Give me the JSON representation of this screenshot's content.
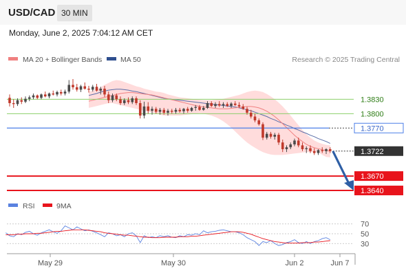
{
  "header": {
    "pair": "USD/CAD",
    "timeframe": "30 MIN",
    "datetime": "Monday, June 2, 2025 7:04:12 AM CET"
  },
  "copyright": "Research © 2025 Trading Central",
  "colors": {
    "up": "#4a4a4a",
    "down": "#c0392b",
    "bollinger_fill": "#ffd6d6",
    "ma20": "#f08080",
    "ma50": "#5a6ea8",
    "resistance_green": "#8ccf6a",
    "pivot_blue": "#4a7ee8",
    "support_red": "#e8141c",
    "arrow": "#2f5fa5",
    "rsi": "#5a82e0",
    "rsi_ma": "#e8141c"
  },
  "chart_data": [
    {
      "type": "candlestick",
      "legend": [
        {
          "label": "MA 20 + Bollinger Bands",
          "color": "#f08080"
        },
        {
          "label": "MA 50",
          "color": "#2f4f8f"
        }
      ],
      "x_tick_labels": [
        "May 29",
        "May 30",
        "Jun 2",
        "Jun 7"
      ],
      "ylim": [
        1.362,
        1.3895
      ],
      "ohlc": [
        [
          1.3833,
          1.384,
          1.3815,
          1.3822
        ],
        [
          1.3822,
          1.383,
          1.3812,
          1.382
        ],
        [
          1.382,
          1.3832,
          1.3816,
          1.3828
        ],
        [
          1.3828,
          1.3834,
          1.382,
          1.3825
        ],
        [
          1.3825,
          1.3836,
          1.3822,
          1.3831
        ],
        [
          1.3831,
          1.3838,
          1.3826,
          1.3834
        ],
        [
          1.3834,
          1.3842,
          1.383,
          1.3838
        ],
        [
          1.3838,
          1.384,
          1.383,
          1.3833
        ],
        [
          1.3833,
          1.3842,
          1.383,
          1.384
        ],
        [
          1.384,
          1.3846,
          1.3834,
          1.3836
        ],
        [
          1.3836,
          1.3844,
          1.3832,
          1.3842
        ],
        [
          1.3842,
          1.3848,
          1.3838,
          1.384
        ],
        [
          1.384,
          1.3848,
          1.3836,
          1.3845
        ],
        [
          1.3845,
          1.385,
          1.3838,
          1.3842
        ],
        [
          1.3842,
          1.385,
          1.3838,
          1.3846
        ],
        [
          1.3846,
          1.387,
          1.3842,
          1.386
        ],
        [
          1.386,
          1.3872,
          1.385,
          1.3855
        ],
        [
          1.3855,
          1.3862,
          1.3846,
          1.385
        ],
        [
          1.385,
          1.386,
          1.3845,
          1.3857
        ],
        [
          1.3857,
          1.3865,
          1.385,
          1.3852
        ],
        [
          1.3852,
          1.3858,
          1.3844,
          1.385
        ],
        [
          1.385,
          1.386,
          1.3846,
          1.3856
        ],
        [
          1.3856,
          1.3862,
          1.3846,
          1.3848
        ],
        [
          1.3848,
          1.3856,
          1.384,
          1.3852
        ],
        [
          1.3852,
          1.3858,
          1.3835,
          1.384
        ],
        [
          1.384,
          1.3846,
          1.3822,
          1.3828
        ],
        [
          1.3828,
          1.3842,
          1.3824,
          1.3838
        ],
        [
          1.3838,
          1.3842,
          1.3826,
          1.383
        ],
        [
          1.383,
          1.3836,
          1.3818,
          1.3822
        ],
        [
          1.3822,
          1.3832,
          1.3818,
          1.3828
        ],
        [
          1.3828,
          1.3834,
          1.382,
          1.3824
        ],
        [
          1.3824,
          1.3836,
          1.382,
          1.3832
        ],
        [
          1.3832,
          1.3836,
          1.3818,
          1.3822
        ],
        [
          1.3822,
          1.3828,
          1.379,
          1.3796
        ],
        [
          1.3796,
          1.3825,
          1.379,
          1.3815
        ],
        [
          1.3815,
          1.3824,
          1.38,
          1.3806
        ],
        [
          1.3806,
          1.3815,
          1.3798,
          1.381
        ],
        [
          1.381,
          1.3814,
          1.38,
          1.3804
        ],
        [
          1.3804,
          1.3812,
          1.3798,
          1.3808
        ],
        [
          1.3808,
          1.3812,
          1.3798,
          1.3802
        ],
        [
          1.3802,
          1.381,
          1.3796,
          1.3806
        ],
        [
          1.3806,
          1.381,
          1.38,
          1.3804
        ],
        [
          1.3804,
          1.3812,
          1.38,
          1.3808
        ],
        [
          1.3808,
          1.3812,
          1.3802,
          1.3805
        ],
        [
          1.3805,
          1.3812,
          1.38,
          1.381
        ],
        [
          1.381,
          1.3814,
          1.3802,
          1.3806
        ],
        [
          1.3806,
          1.3814,
          1.3804,
          1.3812
        ],
        [
          1.3812,
          1.3818,
          1.3806,
          1.3814
        ],
        [
          1.3814,
          1.3818,
          1.3806,
          1.3808
        ],
        [
          1.3808,
          1.3816,
          1.3806,
          1.3812
        ],
        [
          1.3812,
          1.3826,
          1.381,
          1.3822
        ],
        [
          1.3822,
          1.3826,
          1.3814,
          1.3816
        ],
        [
          1.3816,
          1.3824,
          1.3812,
          1.382
        ],
        [
          1.382,
          1.3826,
          1.3814,
          1.3817
        ],
        [
          1.3817,
          1.3824,
          1.3812,
          1.382
        ],
        [
          1.382,
          1.3824,
          1.3814,
          1.3816
        ],
        [
          1.3816,
          1.3824,
          1.3812,
          1.3821
        ],
        [
          1.3821,
          1.3826,
          1.3816,
          1.3818
        ],
        [
          1.3818,
          1.3824,
          1.3812,
          1.3815
        ],
        [
          1.3815,
          1.382,
          1.3808,
          1.381
        ],
        [
          1.381,
          1.3814,
          1.3798,
          1.3802
        ],
        [
          1.3802,
          1.3808,
          1.379,
          1.3794
        ],
        [
          1.3794,
          1.38,
          1.3782,
          1.3786
        ],
        [
          1.3786,
          1.379,
          1.3775,
          1.3778
        ],
        [
          1.3778,
          1.3782,
          1.3745,
          1.375
        ],
        [
          1.375,
          1.3762,
          1.3746,
          1.3758
        ],
        [
          1.3758,
          1.3762,
          1.3748,
          1.3752
        ],
        [
          1.3752,
          1.376,
          1.3746,
          1.3756
        ],
        [
          1.3756,
          1.376,
          1.3735,
          1.374
        ],
        [
          1.374,
          1.3746,
          1.372,
          1.3726
        ],
        [
          1.3726,
          1.3734,
          1.372,
          1.373
        ],
        [
          1.373,
          1.374,
          1.3726,
          1.3736
        ],
        [
          1.3736,
          1.3748,
          1.3732,
          1.3744
        ],
        [
          1.3744,
          1.375,
          1.373,
          1.3734
        ],
        [
          1.3734,
          1.374,
          1.3722,
          1.3726
        ],
        [
          1.3726,
          1.3732,
          1.3718,
          1.3728
        ],
        [
          1.3728,
          1.3734,
          1.3718,
          1.3722
        ],
        [
          1.3722,
          1.3728,
          1.3714,
          1.3718
        ],
        [
          1.3718,
          1.3726,
          1.3714,
          1.3724
        ],
        [
          1.3724,
          1.373,
          1.3718,
          1.3722
        ],
        [
          1.3722,
          1.3728,
          1.3716,
          1.3726
        ],
        [
          1.3726,
          1.373,
          1.3718,
          1.3722
        ]
      ],
      "ma20": [
        1.3826,
        1.3828,
        1.383,
        1.3832,
        1.3834,
        1.3836,
        1.3838,
        1.384,
        1.3842,
        1.3843,
        1.3844,
        1.3844,
        1.3843,
        1.3842,
        1.3841,
        1.384,
        1.3839,
        1.3837,
        1.3835,
        1.3833,
        1.3831,
        1.3829,
        1.3827,
        1.3825,
        1.3823,
        1.3821,
        1.3819,
        1.3817,
        1.3815,
        1.3814,
        1.3813,
        1.3812,
        1.3811,
        1.381,
        1.381,
        1.381,
        1.3811,
        1.3812,
        1.3813,
        1.3814,
        1.3815,
        1.3815,
        1.3814,
        1.3812,
        1.3809,
        1.3805,
        1.38,
        1.3794,
        1.3787,
        1.3779,
        1.3771,
        1.3763,
        1.3755,
        1.3748,
        1.3742,
        1.3736,
        1.3732,
        1.3729,
        1.3727,
        1.3725,
        1.3723,
        1.3722
      ],
      "bb_upper": [
        1.3846,
        1.3848,
        1.385,
        1.3855,
        1.386,
        1.3864,
        1.3868,
        1.387,
        1.3869,
        1.3866,
        1.3863,
        1.386,
        1.3857,
        1.3855,
        1.3852,
        1.385,
        1.3848,
        1.3846,
        1.3845,
        1.3843,
        1.384,
        1.3838,
        1.3836,
        1.3834,
        1.3833,
        1.3832,
        1.3831,
        1.383,
        1.3829,
        1.3828,
        1.3828,
        1.3828,
        1.3829,
        1.383,
        1.3831,
        1.3833,
        1.3835,
        1.3837,
        1.3839,
        1.3842,
        1.3845,
        1.3847,
        1.3848,
        1.3847,
        1.3845,
        1.3841,
        1.3836,
        1.383,
        1.3823,
        1.3815,
        1.3806,
        1.3796,
        1.3786,
        1.3776,
        1.3766,
        1.3757,
        1.375,
        1.3744,
        1.374,
        1.3737,
        1.3735,
        1.3734
      ],
      "bb_lower": [
        1.3812,
        1.3814,
        1.3816,
        1.3818,
        1.382,
        1.3822,
        1.3822,
        1.382,
        1.3818,
        1.3816,
        1.3814,
        1.3812,
        1.381,
        1.3808,
        1.3806,
        1.3804,
        1.3802,
        1.38,
        1.3798,
        1.3796,
        1.3796,
        1.3796,
        1.3796,
        1.3796,
        1.3797,
        1.3798,
        1.3799,
        1.38,
        1.3801,
        1.38,
        1.3798,
        1.3796,
        1.3793,
        1.3789,
        1.3784,
        1.3778,
        1.3771,
        1.3763,
        1.3755,
        1.3747,
        1.374,
        1.3734,
        1.3729,
        1.3724,
        1.372,
        1.3717,
        1.3715,
        1.3714,
        1.3714,
        1.3714,
        1.3715,
        1.3716,
        1.3717,
        1.3718,
        1.3719,
        1.372,
        1.372,
        1.372,
        1.372,
        1.3714,
        1.371,
        1.3709
      ],
      "ma50": [
        1.3838,
        1.384,
        1.3842,
        1.3845,
        1.3847,
        1.3849,
        1.385,
        1.3851,
        1.3851,
        1.385,
        1.3849,
        1.3847,
        1.3846,
        1.3844,
        1.3842,
        1.384,
        1.3838,
        1.3836,
        1.3834,
        1.3832,
        1.3831,
        1.383,
        1.3829,
        1.3828,
        1.3827,
        1.3826,
        1.3825,
        1.3824,
        1.3823,
        1.3822,
        1.3821,
        1.382,
        1.3819,
        1.3818,
        1.3817,
        1.3816,
        1.3815,
        1.3814,
        1.3812,
        1.381,
        1.3808,
        1.3806,
        1.3803,
        1.38,
        1.3797,
        1.3794,
        1.379,
        1.3787,
        1.3783,
        1.378,
        1.3776,
        1.3773,
        1.3769,
        1.3766,
        1.3762,
        1.3759,
        1.3755,
        1.3752,
        1.3748,
        1.3745,
        1.3742,
        1.3738
      ],
      "levels": [
        {
          "value": 1.383,
          "label": "1.3830",
          "kind": "resistance"
        },
        {
          "value": 1.38,
          "label": "1.3800",
          "kind": "resistance"
        },
        {
          "value": 1.377,
          "label": "1.3770",
          "kind": "pivot"
        },
        {
          "value": 1.3722,
          "label": "1.3722",
          "kind": "last"
        },
        {
          "value": 1.367,
          "label": "1.3670",
          "kind": "support"
        },
        {
          "value": 1.364,
          "label": "1.3640",
          "kind": "support"
        }
      ],
      "forecast_target": 1.364
    },
    {
      "type": "line",
      "legend": [
        {
          "label": "RSI",
          "color": "#5a82e0"
        },
        {
          "label": "9MA",
          "color": "#e8141c"
        }
      ],
      "y_tick_labels": [
        "70",
        "50",
        "30"
      ],
      "ylim": [
        15,
        85
      ],
      "rsi": [
        52,
        46,
        44,
        50,
        48,
        53,
        55,
        50,
        47,
        52,
        55,
        58,
        54,
        51,
        56,
        66,
        62,
        58,
        64,
        60,
        56,
        58,
        55,
        52,
        48,
        44,
        52,
        50,
        46,
        48,
        44,
        50,
        52,
        46,
        32,
        46,
        42,
        44,
        42,
        46,
        44,
        46,
        43,
        42,
        46,
        44,
        48,
        47,
        50,
        48,
        56,
        52,
        54,
        55,
        57,
        58,
        56,
        54,
        54,
        52,
        48,
        42,
        38,
        34,
        26,
        34,
        32,
        36,
        30,
        26,
        28,
        32,
        34,
        38,
        32,
        30,
        34,
        30,
        34,
        36,
        40,
        42,
        38
      ],
      "rsi_ma": [
        48,
        48,
        48,
        49,
        49,
        50,
        50,
        50,
        51,
        51,
        52,
        53,
        54,
        55,
        55,
        56,
        57,
        58,
        58,
        58,
        58,
        57,
        56,
        55,
        54,
        52,
        51,
        50,
        49,
        48,
        47,
        47,
        46,
        45,
        44,
        43,
        43,
        42,
        42,
        42,
        43,
        43,
        43,
        43,
        44,
        44,
        44,
        45,
        45,
        46,
        47,
        48,
        49,
        50,
        51,
        52,
        53,
        54,
        54,
        54,
        53,
        51,
        49,
        46,
        43,
        40,
        38,
        36,
        34,
        33,
        32,
        31,
        31,
        31,
        31,
        32,
        32,
        32,
        33,
        33,
        34,
        35,
        36
      ]
    }
  ]
}
